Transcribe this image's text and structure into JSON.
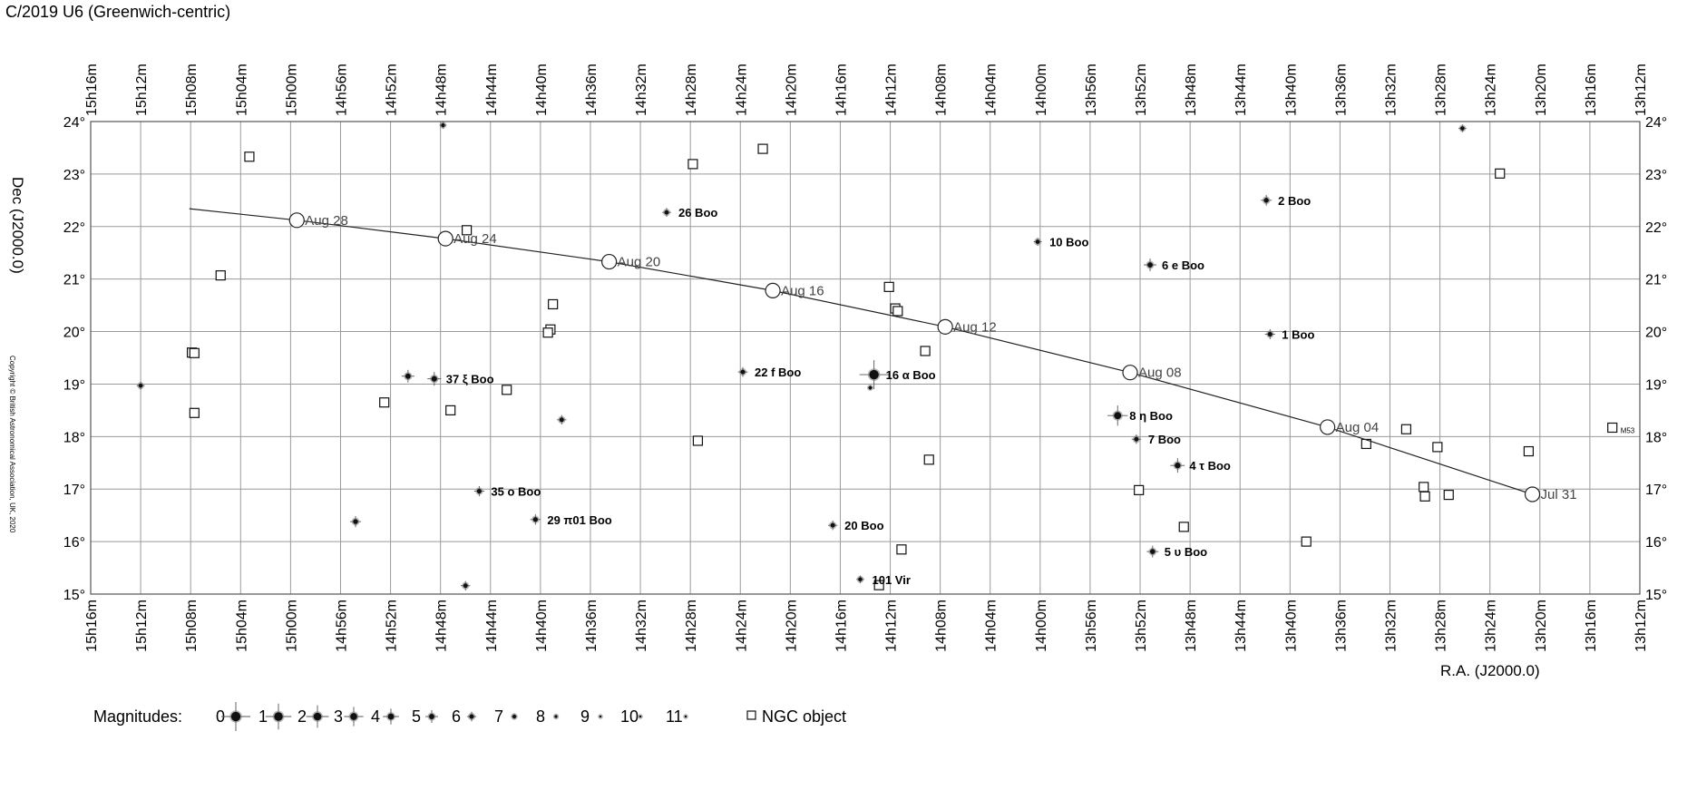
{
  "title": "C/2019 U6  (Greenwich-centric)",
  "copyright": "Copyright © British Astronomical Association, UK, 2020",
  "chart_data": {
    "type": "scatter",
    "xlabel": "R.A. (J2000.0)",
    "ylabel": "Dec (J2000.0)",
    "x_unit": "minutes of RA",
    "xlim": [
      792,
      916
    ],
    "ylim": [
      15,
      24
    ],
    "x_ticks": [
      "15h16m",
      "15h12m",
      "15h08m",
      "15h04m",
      "15h00m",
      "14h56m",
      "14h52m",
      "14h48m",
      "14h44m",
      "14h40m",
      "14h36m",
      "14h32m",
      "14h28m",
      "14h24m",
      "14h20m",
      "14h16m",
      "14h12m",
      "14h08m",
      "14h04m",
      "14h00m",
      "13h56m",
      "13h52m",
      "13h48m",
      "13h44m",
      "13h40m",
      "13h36m",
      "13h32m",
      "13h28m",
      "13h24m",
      "13h20m",
      "13h16m",
      "13h12m"
    ],
    "y_ticks": [
      "15°",
      "16°",
      "17°",
      "18°",
      "19°",
      "20°",
      "21°",
      "22°",
      "23°",
      "24°"
    ],
    "comet_path": [
      {
        "ra": 908.1,
        "dec": 22.34
      },
      {
        "ra": 899.5,
        "dec": 22.12
      },
      {
        "ra": 887.6,
        "dec": 21.77
      },
      {
        "ra": 874.5,
        "dec": 21.33
      },
      {
        "ra": 861.4,
        "dec": 20.78
      },
      {
        "ra": 847.6,
        "dec": 20.09
      },
      {
        "ra": 832.8,
        "dec": 19.22
      },
      {
        "ra": 817.0,
        "dec": 18.18
      },
      {
        "ra": 800.6,
        "dec": 16.9
      }
    ],
    "date_marks": [
      {
        "ra": 899.5,
        "dec": 22.12,
        "label": "Aug 28"
      },
      {
        "ra": 887.6,
        "dec": 21.77,
        "label": "Aug 24"
      },
      {
        "ra": 874.5,
        "dec": 21.33,
        "label": "Aug 20"
      },
      {
        "ra": 861.4,
        "dec": 20.78,
        "label": "Aug 16"
      },
      {
        "ra": 847.6,
        "dec": 20.09,
        "label": "Aug 12"
      },
      {
        "ra": 832.8,
        "dec": 19.22,
        "label": "Aug 08"
      },
      {
        "ra": 817.0,
        "dec": 18.18,
        "label": "Aug 04"
      },
      {
        "ra": 800.6,
        "dec": 16.9,
        "label": "Jul 31"
      }
    ],
    "stars": [
      {
        "ra": 912.0,
        "dec": 18.97,
        "mag": 6.5,
        "label": ""
      },
      {
        "ra": 894.8,
        "dec": 16.38,
        "mag": 5.5,
        "label": ""
      },
      {
        "ra": 890.6,
        "dec": 19.15,
        "mag": 5.0,
        "label": ""
      },
      {
        "ra": 888.5,
        "dec": 19.1,
        "mag": 4.7,
        "label": "37 ξ Boo"
      },
      {
        "ra": 887.8,
        "dec": 23.93,
        "mag": 6.8,
        "label": ""
      },
      {
        "ra": 886.0,
        "dec": 15.16,
        "mag": 6.0,
        "label": ""
      },
      {
        "ra": 884.9,
        "dec": 16.96,
        "mag": 5.8,
        "label": "35 o Boo"
      },
      {
        "ra": 880.4,
        "dec": 16.42,
        "mag": 5.7,
        "label": "29 π01 Boo"
      },
      {
        "ra": 878.3,
        "dec": 18.32,
        "mag": 6.0,
        "label": ""
      },
      {
        "ra": 869.9,
        "dec": 22.27,
        "mag": 6.2,
        "label": "26 Boo"
      },
      {
        "ra": 863.8,
        "dec": 19.23,
        "mag": 5.9,
        "label": "22 f Boo"
      },
      {
        "ra": 856.6,
        "dec": 16.31,
        "mag": 6.0,
        "label": "20 Boo"
      },
      {
        "ra": 854.4,
        "dec": 15.28,
        "mag": 6.5,
        "label": "101 Vir"
      },
      {
        "ra": 853.3,
        "dec": 19.18,
        "mag": 0.0,
        "label": "16 α Boo"
      },
      {
        "ra": 853.6,
        "dec": 18.93,
        "mag": 7.5,
        "label": ""
      },
      {
        "ra": 840.2,
        "dec": 21.71,
        "mag": 6.4,
        "label": "10 Boo"
      },
      {
        "ra": 833.8,
        "dec": 18.4,
        "mag": 2.7,
        "label": "8 η Boo"
      },
      {
        "ra": 832.3,
        "dec": 17.95,
        "mag": 6.0,
        "label": "7 Boo"
      },
      {
        "ra": 831.2,
        "dec": 21.27,
        "mag": 5.0,
        "label": "6 e Boo"
      },
      {
        "ra": 831.0,
        "dec": 15.81,
        "mag": 5.3,
        "label": "5 υ Boo"
      },
      {
        "ra": 829.0,
        "dec": 17.45,
        "mag": 4.5,
        "label": "4 τ Boo"
      },
      {
        "ra": 821.9,
        "dec": 22.5,
        "mag": 5.6,
        "label": "2 Boo"
      },
      {
        "ra": 821.6,
        "dec": 19.95,
        "mag": 5.8,
        "label": "1 Boo"
      },
      {
        "ra": 806.2,
        "dec": 23.87,
        "mag": 6.5,
        "label": ""
      }
    ],
    "ngc_objects": [
      {
        "ra": 903.3,
        "dec": 23.33,
        "label": ""
      },
      {
        "ra": 905.6,
        "dec": 21.07,
        "label": ""
      },
      {
        "ra": 907.9,
        "dec": 19.6,
        "label": ""
      },
      {
        "ra": 907.7,
        "dec": 19.59,
        "label": ""
      },
      {
        "ra": 907.7,
        "dec": 18.45,
        "label": ""
      },
      {
        "ra": 892.5,
        "dec": 18.65,
        "label": ""
      },
      {
        "ra": 887.2,
        "dec": 18.5,
        "label": ""
      },
      {
        "ra": 885.9,
        "dec": 21.93,
        "label": ""
      },
      {
        "ra": 882.7,
        "dec": 18.89,
        "label": ""
      },
      {
        "ra": 879.0,
        "dec": 20.52,
        "label": ""
      },
      {
        "ra": 879.2,
        "dec": 20.04,
        "label": ""
      },
      {
        "ra": 879.4,
        "dec": 19.98,
        "label": ""
      },
      {
        "ra": 867.8,
        "dec": 23.19,
        "label": ""
      },
      {
        "ra": 867.4,
        "dec": 17.92,
        "label": ""
      },
      {
        "ra": 862.2,
        "dec": 23.48,
        "label": ""
      },
      {
        "ra": 852.1,
        "dec": 20.85,
        "label": ""
      },
      {
        "ra": 851.6,
        "dec": 20.44,
        "label": ""
      },
      {
        "ra": 851.4,
        "dec": 20.39,
        "label": ""
      },
      {
        "ra": 852.9,
        "dec": 15.17,
        "label": ""
      },
      {
        "ra": 851.1,
        "dec": 15.85,
        "label": ""
      },
      {
        "ra": 849.2,
        "dec": 19.63,
        "label": ""
      },
      {
        "ra": 848.9,
        "dec": 17.56,
        "label": ""
      },
      {
        "ra": 832.1,
        "dec": 16.98,
        "label": ""
      },
      {
        "ra": 828.5,
        "dec": 16.28,
        "label": ""
      },
      {
        "ra": 818.7,
        "dec": 16.0,
        "label": ""
      },
      {
        "ra": 813.9,
        "dec": 17.86,
        "label": ""
      },
      {
        "ra": 810.7,
        "dec": 18.14,
        "label": ""
      },
      {
        "ra": 809.2,
        "dec": 16.86,
        "label": ""
      },
      {
        "ra": 809.3,
        "dec": 17.04,
        "label": ""
      },
      {
        "ra": 807.3,
        "dec": 16.89,
        "label": ""
      },
      {
        "ra": 808.2,
        "dec": 17.8,
        "label": ""
      },
      {
        "ra": 803.2,
        "dec": 23.01,
        "label": ""
      },
      {
        "ra": 800.9,
        "dec": 17.72,
        "label": ""
      },
      {
        "ra": 794.2,
        "dec": 18.17,
        "label": "M53"
      }
    ],
    "legend": {
      "title": "Magnitudes:",
      "magnitudes": [
        "0",
        "1",
        "2",
        "3",
        "4",
        "5",
        "6",
        "7",
        "8",
        "9",
        "10",
        "11"
      ],
      "ngc_label": "NGC object"
    }
  }
}
